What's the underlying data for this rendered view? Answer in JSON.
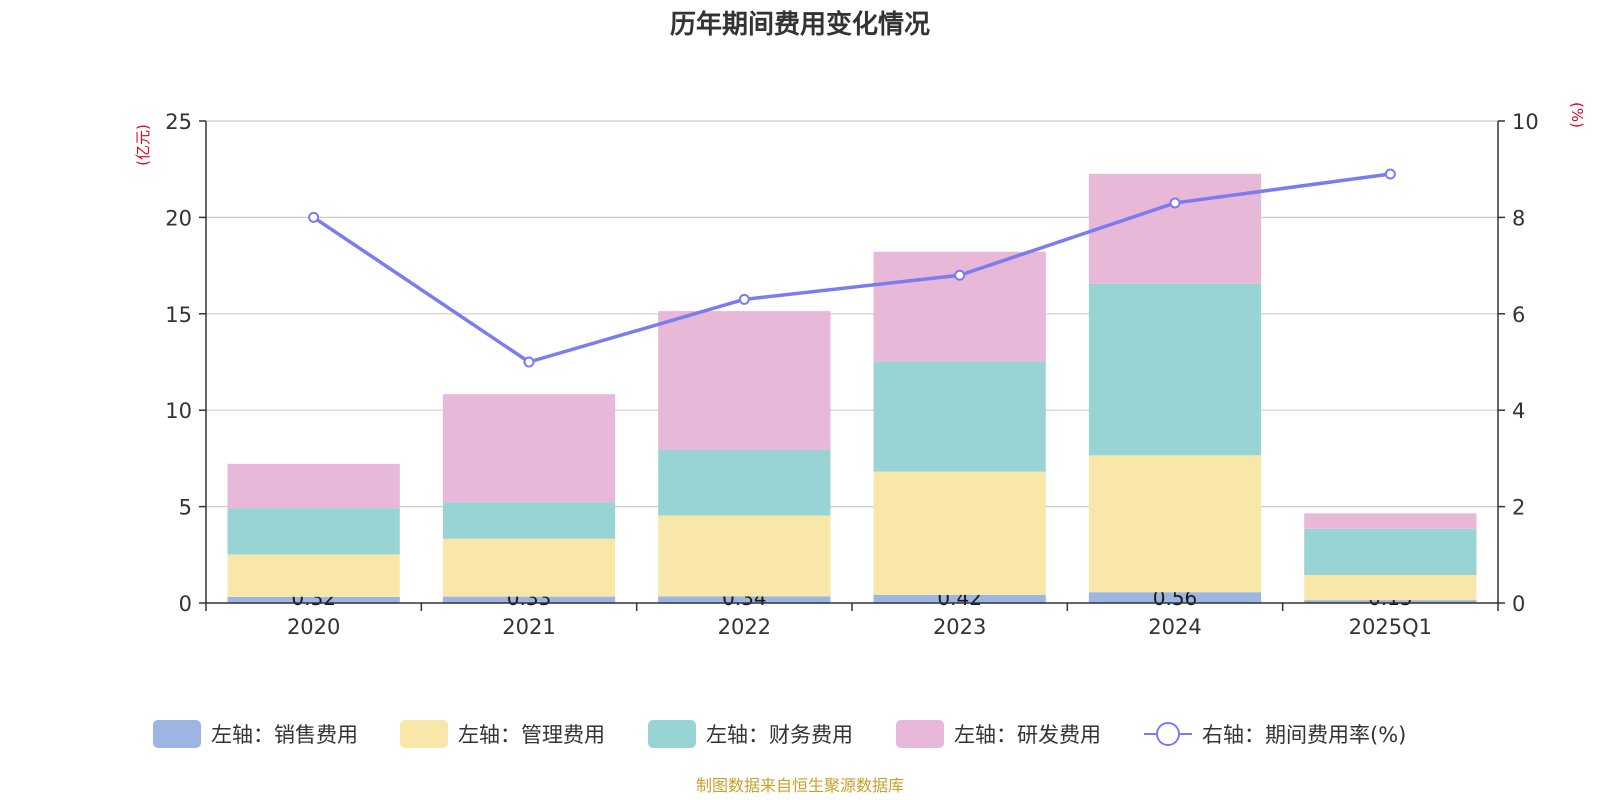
{
  "chart_data": {
    "type": "bar",
    "title": "历年期间费用变化情况",
    "categories": [
      "2020",
      "2021",
      "2022",
      "2023",
      "2024",
      "2025Q1"
    ],
    "left_axis": {
      "unit": "(亿元)",
      "ylim": [
        0,
        25
      ],
      "ticks": [
        "0",
        "5",
        "10",
        "15",
        "20",
        "25"
      ]
    },
    "right_axis": {
      "unit": "(%)",
      "ylim": [
        0,
        10
      ],
      "ticks": [
        "0",
        "2",
        "4",
        "6",
        "8",
        "10"
      ]
    },
    "stacked": true,
    "series": [
      {
        "name": "左轴：销售费用",
        "type": "bar",
        "color": "#9db5e3",
        "values": [
          0.32,
          0.33,
          0.34,
          0.42,
          0.56,
          0.15
        ],
        "labels": [
          "0.32",
          "0.33",
          "0.34",
          "0.42",
          "0.56",
          "0.15"
        ]
      },
      {
        "name": "左轴：管理费用",
        "type": "bar",
        "color": "#f8e7a8",
        "values": [
          2.2,
          3.0,
          4.2,
          6.4,
          7.1,
          1.3
        ]
      },
      {
        "name": "左轴：财务费用",
        "type": "bar",
        "color": "#99d4d5",
        "values": [
          2.4,
          1.9,
          3.4,
          5.7,
          8.9,
          2.4
        ]
      },
      {
        "name": "左轴：研发费用",
        "type": "bar",
        "color": "#e8b8d8",
        "values": [
          2.3,
          5.6,
          7.2,
          5.7,
          5.7,
          0.8
        ]
      },
      {
        "name": "右轴：期间费用率(%)",
        "type": "line",
        "axis": "right",
        "color": "#7b7cf0",
        "values": [
          8.0,
          5.0,
          6.3,
          6.8,
          8.3,
          8.9
        ]
      }
    ],
    "grid": true,
    "legend_position": "bottom"
  },
  "footer": {
    "source": "制图数据来自恒生聚源数据库"
  }
}
